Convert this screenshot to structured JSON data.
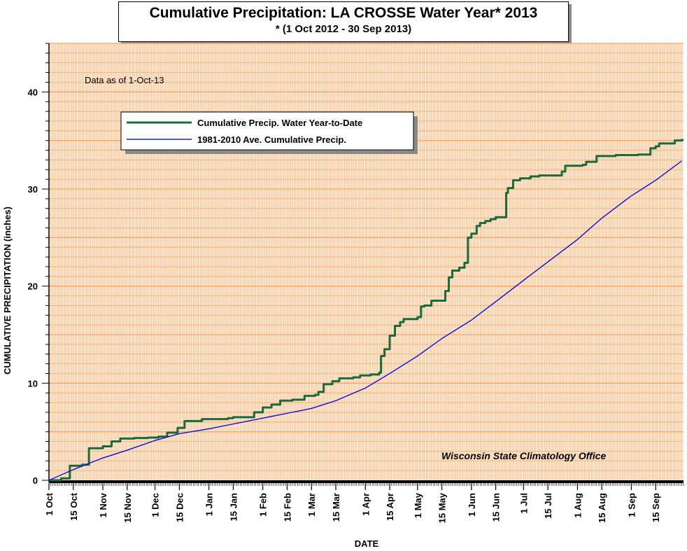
{
  "header": {
    "title": "Cumulative Precipitation: LA CROSSE Water Year* 2013",
    "subtitle_star": "*",
    "subtitle": " (1 Oct 2012 - 30 Sep 2013)"
  },
  "note": "Data as of 1-Oct-13",
  "credit": "Wisconsin State Climatology Office",
  "colors": {
    "plot_background": "#fde9d4",
    "grid": "#f7a867",
    "series_actual": "#1b6a3c",
    "series_normal": "#1818d8"
  },
  "chart_data": {
    "type": "line",
    "xlabel": "DATE",
    "ylabel": "CUMULATIVE PRECIPITATION (inches)",
    "ylim": [
      0,
      45
    ],
    "xlim_days": [
      0,
      365
    ],
    "y_ticks": [
      "0",
      "10",
      "20",
      "30",
      "40"
    ],
    "x_ticks": [
      {
        "label": "1 Oct",
        "date": "2012-10-01"
      },
      {
        "label": "15 Oct",
        "date": "2012-10-15"
      },
      {
        "label": "1 Nov",
        "date": "2012-11-01"
      },
      {
        "label": "15 Nov",
        "date": "2012-11-15"
      },
      {
        "label": "1 Dec",
        "date": "2012-12-01"
      },
      {
        "label": "15 Dec",
        "date": "2012-12-15"
      },
      {
        "label": "1 Jan",
        "date": "2013-01-01"
      },
      {
        "label": "15 Jan",
        "date": "2013-01-15"
      },
      {
        "label": "1 Feb",
        "date": "2013-02-01"
      },
      {
        "label": "15 Feb",
        "date": "2013-02-15"
      },
      {
        "label": "1 Mar",
        "date": "2013-03-01"
      },
      {
        "label": "15 Mar",
        "date": "2013-03-15"
      },
      {
        "label": "1 Apr",
        "date": "2013-04-01"
      },
      {
        "label": "15 Apr",
        "date": "2013-04-15"
      },
      {
        "label": "1 May",
        "date": "2013-05-01"
      },
      {
        "label": "15 May",
        "date": "2013-05-15"
      },
      {
        "label": "1 Jun",
        "date": "2013-06-01"
      },
      {
        "label": "15 Jun",
        "date": "2013-06-15"
      },
      {
        "label": "1 Jul",
        "date": "2013-07-01"
      },
      {
        "label": "15 Jul",
        "date": "2013-07-15"
      },
      {
        "label": "1 Aug",
        "date": "2013-08-01"
      },
      {
        "label": "15 Aug",
        "date": "2013-08-15"
      },
      {
        "label": "1 Sep",
        "date": "2013-09-01"
      },
      {
        "label": "15 Sep",
        "date": "2013-09-15"
      }
    ],
    "grid": true,
    "legend_position": "top-left",
    "series": [
      {
        "name": "Cumulative Precip.  Water Year-to-Date",
        "step": true,
        "points": [
          [
            "2012-10-01",
            0
          ],
          [
            "2012-10-08",
            0.2
          ],
          [
            "2012-10-13",
            1.5
          ],
          [
            "2012-10-20",
            1.6
          ],
          [
            "2012-10-24",
            3.3
          ],
          [
            "2012-11-01",
            3.5
          ],
          [
            "2012-11-06",
            4.0
          ],
          [
            "2012-11-11",
            4.3
          ],
          [
            "2012-11-19",
            4.35
          ],
          [
            "2012-11-27",
            4.4
          ],
          [
            "2012-12-03",
            4.5
          ],
          [
            "2012-12-08",
            4.9
          ],
          [
            "2012-12-14",
            5.4
          ],
          [
            "2012-12-18",
            6.1
          ],
          [
            "2012-12-28",
            6.3
          ],
          [
            "2013-01-12",
            6.4
          ],
          [
            "2013-01-15",
            6.5
          ],
          [
            "2013-01-27",
            7.0
          ],
          [
            "2013-02-01",
            7.5
          ],
          [
            "2013-02-06",
            7.8
          ],
          [
            "2013-02-11",
            8.2
          ],
          [
            "2013-02-18",
            8.3
          ],
          [
            "2013-02-25",
            8.7
          ],
          [
            "2013-03-03",
            8.8
          ],
          [
            "2013-03-05",
            9.1
          ],
          [
            "2013-03-08",
            9.9
          ],
          [
            "2013-03-13",
            10.2
          ],
          [
            "2013-03-17",
            10.5
          ],
          [
            "2013-03-25",
            10.6
          ],
          [
            "2013-03-29",
            10.8
          ],
          [
            "2013-04-04",
            10.9
          ],
          [
            "2013-04-09",
            11.1
          ],
          [
            "2013-04-10",
            12.8
          ],
          [
            "2013-04-12",
            13.5
          ],
          [
            "2013-04-15",
            14.9
          ],
          [
            "2013-04-18",
            15.9
          ],
          [
            "2013-04-21",
            16.3
          ],
          [
            "2013-04-23",
            16.6
          ],
          [
            "2013-05-01",
            16.8
          ],
          [
            "2013-05-03",
            17.9
          ],
          [
            "2013-05-05",
            18.0
          ],
          [
            "2013-05-09",
            18.5
          ],
          [
            "2013-05-17",
            19.5
          ],
          [
            "2013-05-19",
            20.9
          ],
          [
            "2013-05-21",
            21.6
          ],
          [
            "2013-05-25",
            21.9
          ],
          [
            "2013-05-28",
            22.4
          ],
          [
            "2013-05-30",
            25.0
          ],
          [
            "2013-06-01",
            25.4
          ],
          [
            "2013-06-04",
            26.2
          ],
          [
            "2013-06-06",
            26.5
          ],
          [
            "2013-06-09",
            26.7
          ],
          [
            "2013-06-12",
            26.9
          ],
          [
            "2013-06-15",
            27.1
          ],
          [
            "2013-06-21",
            29.6
          ],
          [
            "2013-06-22",
            30.1
          ],
          [
            "2013-06-25",
            30.9
          ],
          [
            "2013-06-29",
            31.1
          ],
          [
            "2013-07-05",
            31.3
          ],
          [
            "2013-07-10",
            31.4
          ],
          [
            "2013-07-23",
            31.8
          ],
          [
            "2013-07-25",
            32.4
          ],
          [
            "2013-08-04",
            32.5
          ],
          [
            "2013-08-06",
            32.8
          ],
          [
            "2013-08-12",
            33.4
          ],
          [
            "2013-08-23",
            33.5
          ],
          [
            "2013-09-05",
            33.55
          ],
          [
            "2013-09-12",
            34.2
          ],
          [
            "2013-09-15",
            34.4
          ],
          [
            "2013-09-17",
            34.7
          ],
          [
            "2013-09-26",
            35.0
          ],
          [
            "2013-09-30",
            35.05
          ]
        ]
      },
      {
        "name": "1981-2010 Ave. Cumulative Precip.",
        "step": false,
        "points": [
          [
            "2012-10-01",
            0
          ],
          [
            "2012-10-15",
            1.1
          ],
          [
            "2012-11-01",
            2.3
          ],
          [
            "2012-11-15",
            3.1
          ],
          [
            "2012-12-01",
            4.1
          ],
          [
            "2012-12-15",
            4.8
          ],
          [
            "2013-01-01",
            5.3
          ],
          [
            "2013-01-15",
            5.8
          ],
          [
            "2013-02-01",
            6.4
          ],
          [
            "2013-02-15",
            6.9
          ],
          [
            "2013-03-01",
            7.4
          ],
          [
            "2013-03-15",
            8.2
          ],
          [
            "2013-04-01",
            9.5
          ],
          [
            "2013-04-15",
            11.0
          ],
          [
            "2013-05-01",
            12.8
          ],
          [
            "2013-05-15",
            14.6
          ],
          [
            "2013-06-01",
            16.5
          ],
          [
            "2013-06-15",
            18.4
          ],
          [
            "2013-07-01",
            20.6
          ],
          [
            "2013-07-15",
            22.5
          ],
          [
            "2013-08-01",
            24.8
          ],
          [
            "2013-08-15",
            27.0
          ],
          [
            "2013-09-01",
            29.3
          ],
          [
            "2013-09-15",
            30.9
          ],
          [
            "2013-09-30",
            32.9
          ]
        ]
      }
    ]
  }
}
